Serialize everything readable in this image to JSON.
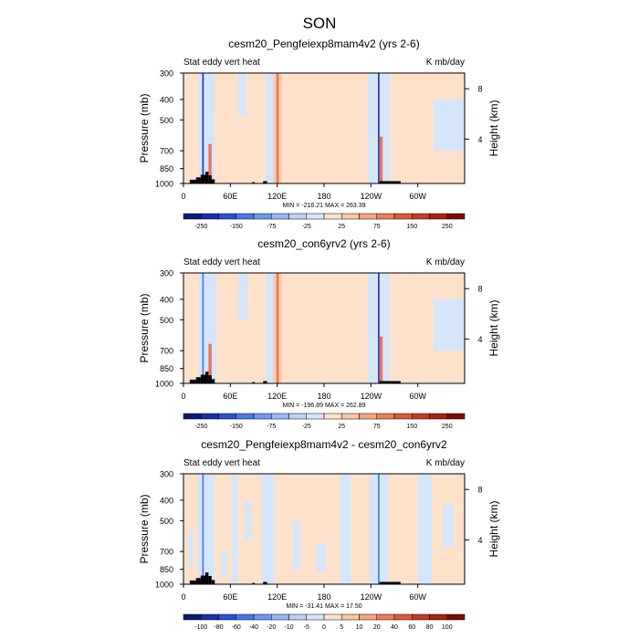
{
  "figure_title": "SON",
  "colors": {
    "light_blue": "#d6e6fa",
    "light_orange": "#fde1cb",
    "orange": "#fbc7a6",
    "red": "#e8765a",
    "dark_red": "#b8321a",
    "blue": "#4a7ee0",
    "dark_blue": "#2838b0",
    "topography": "#000000"
  },
  "chart_data": [
    {
      "type": "heatmap",
      "title": "cesm20_Pengfeiexp8mam4v2 (yrs 2-6)",
      "left_label": "Stat eddy vert heat",
      "right_label": "K mb/day",
      "ylabel": "Pressure (mb)",
      "ylabel_right": "Height (km)",
      "x_ticks": [
        "0",
        "60E",
        "120E",
        "180",
        "120W",
        "60W"
      ],
      "x_tick_values": [
        0,
        60,
        120,
        180,
        240,
        300
      ],
      "xlim": [
        0,
        360
      ],
      "y_ticks": [
        "300",
        "400",
        "500",
        "700",
        "850",
        "1000"
      ],
      "y_tick_values": [
        300,
        400,
        500,
        700,
        850,
        1000
      ],
      "ylim": [
        1000,
        300
      ],
      "height_ticks": [
        "8",
        "4"
      ],
      "height_tick_values": [
        8,
        4
      ],
      "min_max": "MIN = -216.21  MAX = 263.39",
      "colorbar_levels": [
        "-250",
        "-150",
        "-75",
        "-25",
        "25",
        "75",
        "150",
        "250"
      ],
      "colorbar_colors": [
        "#0a1a7a",
        "#1530b0",
        "#2a50d8",
        "#4a78e8",
        "#6e98f0",
        "#98b8f5",
        "#bcd2f8",
        "#d8e6fb",
        "#fde3cc",
        "#fbc8a4",
        "#f6a57c",
        "#ee7e58",
        "#e0583a",
        "#c83a22",
        "#a82214",
        "#7a0c08"
      ],
      "zones": [
        {
          "x0": 0,
          "x1": 20,
          "p0": 300,
          "p1": 1000,
          "level": "light_orange"
        },
        {
          "x0": 20,
          "x1": 40,
          "p0": 300,
          "p1": 1000,
          "level": "light_blue"
        },
        {
          "x0": 24,
          "x1": 26,
          "p0": 300,
          "p1": 1000,
          "level": "dark_blue"
        },
        {
          "x0": 32,
          "x1": 36,
          "p0": 650,
          "p1": 1000,
          "level": "red"
        },
        {
          "x0": 40,
          "x1": 60,
          "p0": 450,
          "p1": 1000,
          "level": "light_orange"
        },
        {
          "x0": 60,
          "x1": 105,
          "p0": 300,
          "p1": 1000,
          "level": "light_orange"
        },
        {
          "x0": 70,
          "x1": 80,
          "p0": 300,
          "p1": 480,
          "level": "light_blue"
        },
        {
          "x0": 105,
          "x1": 115,
          "p0": 300,
          "p1": 1000,
          "level": "light_blue"
        },
        {
          "x0": 115,
          "x1": 126,
          "p0": 300,
          "p1": 1000,
          "level": "orange"
        },
        {
          "x0": 119,
          "x1": 122,
          "p0": 300,
          "p1": 1000,
          "level": "red"
        },
        {
          "x0": 126,
          "x1": 236,
          "p0": 300,
          "p1": 1000,
          "level": "light_orange"
        },
        {
          "x0": 236,
          "x1": 264,
          "p0": 300,
          "p1": 1000,
          "level": "light_blue"
        },
        {
          "x0": 249,
          "x1": 251,
          "p0": 300,
          "p1": 1000,
          "level": "dark_blue"
        },
        {
          "x0": 251,
          "x1": 255,
          "p0": 600,
          "p1": 1000,
          "level": "red"
        },
        {
          "x0": 264,
          "x1": 290,
          "p0": 300,
          "p1": 1000,
          "level": "light_orange"
        },
        {
          "x0": 290,
          "x1": 360,
          "p0": 300,
          "p1": 1000,
          "level": "light_orange"
        },
        {
          "x0": 320,
          "x1": 360,
          "p0": 400,
          "p1": 700,
          "level": "light_blue"
        }
      ],
      "topography": [
        {
          "x0": 8,
          "x1": 16,
          "p": 960
        },
        {
          "x0": 16,
          "x1": 22,
          "p": 935
        },
        {
          "x0": 22,
          "x1": 28,
          "p": 910
        },
        {
          "x0": 28,
          "x1": 32,
          "p": 880
        },
        {
          "x0": 32,
          "x1": 36,
          "p": 915
        },
        {
          "x0": 36,
          "x1": 40,
          "p": 955
        },
        {
          "x0": 88,
          "x1": 91,
          "p": 985
        },
        {
          "x0": 102,
          "x1": 107,
          "p": 975
        },
        {
          "x0": 251,
          "x1": 278,
          "p": 975
        }
      ]
    },
    {
      "type": "heatmap",
      "title": "cesm20_con6yrv2 (yrs 2-6)",
      "left_label": "Stat eddy vert heat",
      "right_label": "K mb/day",
      "ylabel": "Pressure (mb)",
      "ylabel_right": "Height (km)",
      "x_ticks": [
        "0",
        "60E",
        "120E",
        "180",
        "120W",
        "60W"
      ],
      "x_tick_values": [
        0,
        60,
        120,
        180,
        240,
        300
      ],
      "xlim": [
        0,
        360
      ],
      "y_ticks": [
        "300",
        "400",
        "500",
        "700",
        "850",
        "1000"
      ],
      "y_tick_values": [
        300,
        400,
        500,
        700,
        850,
        1000
      ],
      "ylim": [
        1000,
        300
      ],
      "height_ticks": [
        "8",
        "4"
      ],
      "height_tick_values": [
        8,
        4
      ],
      "min_max": "MIN = -196.89  MAX = 262.89",
      "colorbar_levels": [
        "-250",
        "-150",
        "-75",
        "-25",
        "25",
        "75",
        "150",
        "250"
      ],
      "colorbar_colors": [
        "#0a1a7a",
        "#1530b0",
        "#2a50d8",
        "#4a78e8",
        "#6e98f0",
        "#98b8f5",
        "#bcd2f8",
        "#d8e6fb",
        "#fde3cc",
        "#fbc8a4",
        "#f6a57c",
        "#ee7e58",
        "#e0583a",
        "#c83a22",
        "#a82214",
        "#7a0c08"
      ],
      "zones": [
        {
          "x0": 0,
          "x1": 20,
          "p0": 300,
          "p1": 1000,
          "level": "light_orange"
        },
        {
          "x0": 20,
          "x1": 42,
          "p0": 300,
          "p1": 1000,
          "level": "light_blue"
        },
        {
          "x0": 24,
          "x1": 26,
          "p0": 300,
          "p1": 1000,
          "level": "blue"
        },
        {
          "x0": 32,
          "x1": 36,
          "p0": 650,
          "p1": 1000,
          "level": "red"
        },
        {
          "x0": 42,
          "x1": 60,
          "p0": 450,
          "p1": 1000,
          "level": "light_orange"
        },
        {
          "x0": 60,
          "x1": 105,
          "p0": 300,
          "p1": 1000,
          "level": "light_orange"
        },
        {
          "x0": 70,
          "x1": 82,
          "p0": 300,
          "p1": 500,
          "level": "light_blue"
        },
        {
          "x0": 105,
          "x1": 115,
          "p0": 300,
          "p1": 1000,
          "level": "light_blue"
        },
        {
          "x0": 115,
          "x1": 126,
          "p0": 300,
          "p1": 1000,
          "level": "orange"
        },
        {
          "x0": 119,
          "x1": 122,
          "p0": 300,
          "p1": 1000,
          "level": "red"
        },
        {
          "x0": 126,
          "x1": 236,
          "p0": 300,
          "p1": 1000,
          "level": "light_orange"
        },
        {
          "x0": 236,
          "x1": 264,
          "p0": 300,
          "p1": 1000,
          "level": "light_blue"
        },
        {
          "x0": 249,
          "x1": 251,
          "p0": 300,
          "p1": 1000,
          "level": "dark_blue"
        },
        {
          "x0": 251,
          "x1": 255,
          "p0": 600,
          "p1": 1000,
          "level": "red"
        },
        {
          "x0": 264,
          "x1": 290,
          "p0": 300,
          "p1": 1000,
          "level": "light_orange"
        },
        {
          "x0": 290,
          "x1": 360,
          "p0": 300,
          "p1": 1000,
          "level": "light_orange"
        },
        {
          "x0": 320,
          "x1": 360,
          "p0": 400,
          "p1": 700,
          "level": "light_blue"
        }
      ],
      "topography": [
        {
          "x0": 8,
          "x1": 16,
          "p": 960
        },
        {
          "x0": 16,
          "x1": 22,
          "p": 935
        },
        {
          "x0": 22,
          "x1": 28,
          "p": 910
        },
        {
          "x0": 28,
          "x1": 32,
          "p": 880
        },
        {
          "x0": 32,
          "x1": 36,
          "p": 915
        },
        {
          "x0": 36,
          "x1": 40,
          "p": 955
        },
        {
          "x0": 88,
          "x1": 91,
          "p": 985
        },
        {
          "x0": 102,
          "x1": 107,
          "p": 975
        },
        {
          "x0": 251,
          "x1": 278,
          "p": 975
        }
      ]
    },
    {
      "type": "heatmap",
      "title": "cesm20_Pengfeiexp8mam4v2 - cesm20_con6yrv2",
      "left_label": "Stat eddy vert heat",
      "right_label": "K mb/day",
      "ylabel": "Pressure (mb)",
      "ylabel_right": "Height (km)",
      "x_ticks": [
        "0",
        "60E",
        "120E",
        "180",
        "120W",
        "60W"
      ],
      "x_tick_values": [
        0,
        60,
        120,
        180,
        240,
        300
      ],
      "xlim": [
        0,
        360
      ],
      "y_ticks": [
        "300",
        "400",
        "500",
        "700",
        "850",
        "1000"
      ],
      "y_tick_values": [
        300,
        400,
        500,
        700,
        850,
        1000
      ],
      "ylim": [
        1000,
        300
      ],
      "height_ticks": [
        "8",
        "4"
      ],
      "height_tick_values": [
        8,
        4
      ],
      "min_max": "MIN = -31.41  MAX = 17.50",
      "colorbar_levels": [
        "-100",
        "-80",
        "-60",
        "-40",
        "-20",
        "-10",
        "-5",
        "0",
        "5",
        "10",
        "20",
        "40",
        "60",
        "80",
        "100"
      ],
      "colorbar_colors": [
        "#0a1a7a",
        "#1530b0",
        "#2a50d8",
        "#4a78e8",
        "#6e98f0",
        "#98b8f5",
        "#bcd2f8",
        "#d8e6fb",
        "#fde3cc",
        "#fbc8a4",
        "#f6a57c",
        "#ee7e58",
        "#e0583a",
        "#c83a22",
        "#a82214",
        "#7a0c08"
      ],
      "zones": [
        {
          "x0": 0,
          "x1": 18,
          "p0": 300,
          "p1": 1000,
          "level": "light_orange"
        },
        {
          "x0": 6,
          "x1": 12,
          "p0": 560,
          "p1": 820,
          "level": "light_blue"
        },
        {
          "x0": 18,
          "x1": 40,
          "p0": 300,
          "p1": 1000,
          "level": "light_blue"
        },
        {
          "x0": 24,
          "x1": 26,
          "p0": 300,
          "p1": 1000,
          "level": "blue"
        },
        {
          "x0": 40,
          "x1": 62,
          "p0": 300,
          "p1": 1000,
          "level": "light_orange"
        },
        {
          "x0": 48,
          "x1": 56,
          "p0": 700,
          "p1": 900,
          "level": "light_blue"
        },
        {
          "x0": 62,
          "x1": 70,
          "p0": 300,
          "p1": 1000,
          "level": "light_blue"
        },
        {
          "x0": 70,
          "x1": 100,
          "p0": 300,
          "p1": 1000,
          "level": "light_orange"
        },
        {
          "x0": 78,
          "x1": 86,
          "p0": 400,
          "p1": 620,
          "level": "light_blue"
        },
        {
          "x0": 100,
          "x1": 116,
          "p0": 300,
          "p1": 1000,
          "level": "light_blue"
        },
        {
          "x0": 116,
          "x1": 140,
          "p0": 300,
          "p1": 1000,
          "level": "light_orange"
        },
        {
          "x0": 140,
          "x1": 150,
          "p0": 500,
          "p1": 850,
          "level": "light_blue"
        },
        {
          "x0": 150,
          "x1": 200,
          "p0": 300,
          "p1": 1000,
          "level": "light_orange"
        },
        {
          "x0": 170,
          "x1": 182,
          "p0": 640,
          "p1": 880,
          "level": "light_blue"
        },
        {
          "x0": 200,
          "x1": 214,
          "p0": 300,
          "p1": 1000,
          "level": "light_blue"
        },
        {
          "x0": 214,
          "x1": 238,
          "p0": 300,
          "p1": 1000,
          "level": "light_orange"
        },
        {
          "x0": 238,
          "x1": 262,
          "p0": 300,
          "p1": 1000,
          "level": "light_blue"
        },
        {
          "x0": 249,
          "x1": 251,
          "p0": 300,
          "p1": 1000,
          "level": "blue"
        },
        {
          "x0": 262,
          "x1": 300,
          "p0": 300,
          "p1": 1000,
          "level": "light_orange"
        },
        {
          "x0": 300,
          "x1": 318,
          "p0": 300,
          "p1": 1000,
          "level": "light_blue"
        },
        {
          "x0": 318,
          "x1": 360,
          "p0": 300,
          "p1": 1000,
          "level": "light_orange"
        },
        {
          "x0": 332,
          "x1": 346,
          "p0": 420,
          "p1": 660,
          "level": "light_blue"
        }
      ],
      "topography": [
        {
          "x0": 8,
          "x1": 16,
          "p": 960
        },
        {
          "x0": 16,
          "x1": 22,
          "p": 935
        },
        {
          "x0": 22,
          "x1": 28,
          "p": 910
        },
        {
          "x0": 28,
          "x1": 32,
          "p": 880
        },
        {
          "x0": 32,
          "x1": 36,
          "p": 915
        },
        {
          "x0": 36,
          "x1": 40,
          "p": 955
        },
        {
          "x0": 88,
          "x1": 91,
          "p": 985
        },
        {
          "x0": 102,
          "x1": 107,
          "p": 975
        },
        {
          "x0": 251,
          "x1": 278,
          "p": 975
        }
      ]
    }
  ]
}
